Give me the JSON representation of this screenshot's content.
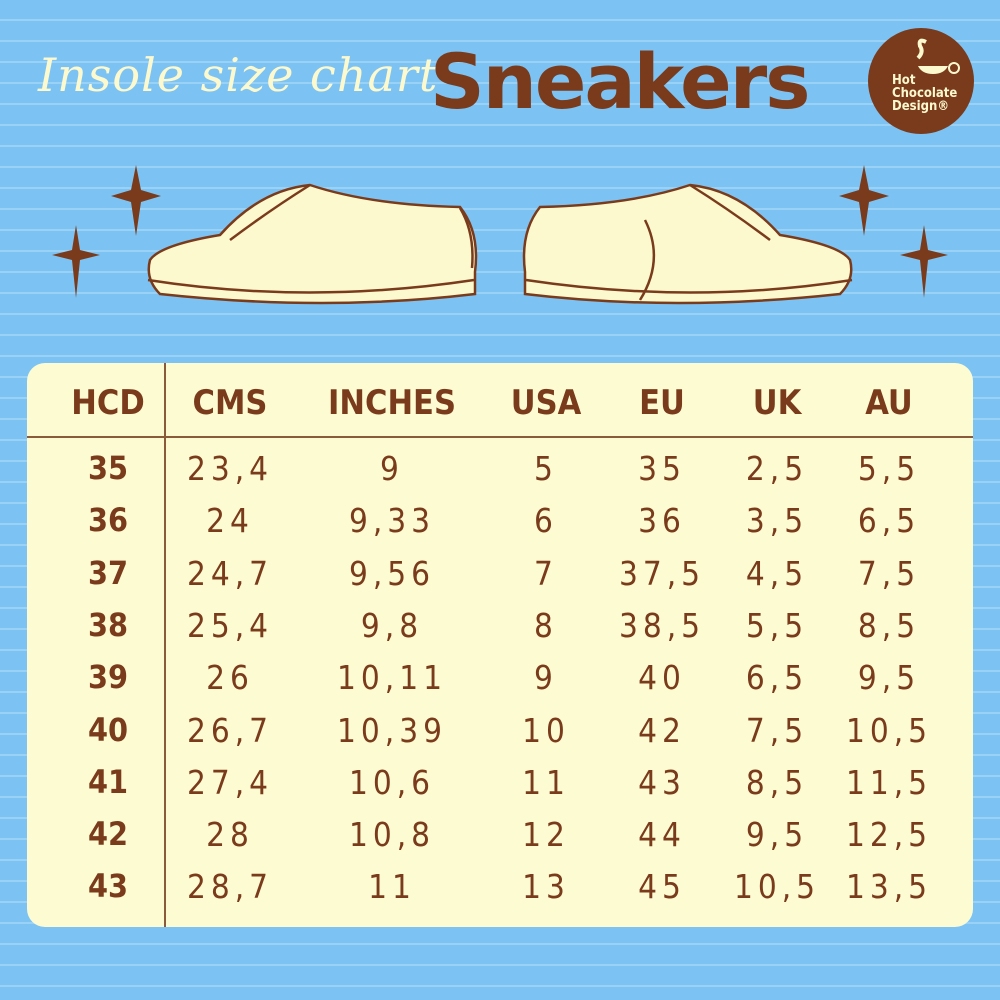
{
  "header": {
    "subtitle": "Insole size chart",
    "title": "Sneakers"
  },
  "logo": {
    "line1": "Hot",
    "line2": "Chocolate",
    "line3": "Design®"
  },
  "colors": {
    "background": "#7cc3f4",
    "panel": "#fdfbd2",
    "brown": "#7a3b1c"
  },
  "table": {
    "columns": [
      "HCD",
      "CMS",
      "INCHES",
      "USA",
      "EU",
      "UK",
      "AU"
    ],
    "rows": [
      [
        "35",
        "23,4",
        "9",
        "5",
        "35",
        "2,5",
        "5,5"
      ],
      [
        "36",
        "24",
        "9,33",
        "6",
        "36",
        "3,5",
        "6,5"
      ],
      [
        "37",
        "24,7",
        "9,56",
        "7",
        "37,5",
        "4,5",
        "7,5"
      ],
      [
        "38",
        "25,4",
        "9,8",
        "8",
        "38,5",
        "5,5",
        "8,5"
      ],
      [
        "39",
        "26",
        "10,11",
        "9",
        "40",
        "6,5",
        "9,5"
      ],
      [
        "40",
        "26,7",
        "10,39",
        "10",
        "42",
        "7,5",
        "10,5"
      ],
      [
        "41",
        "27,4",
        "10,6",
        "11",
        "43",
        "8,5",
        "11,5"
      ],
      [
        "42",
        "28",
        "10,8",
        "12",
        "44",
        "9,5",
        "12,5"
      ],
      [
        "43",
        "28,7",
        "11",
        "13",
        "45",
        "10,5",
        "13,5"
      ]
    ]
  }
}
